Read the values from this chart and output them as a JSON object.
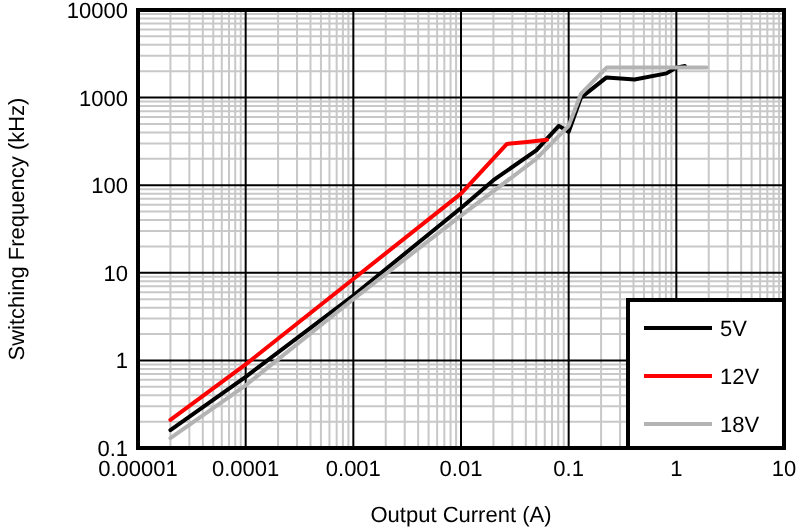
{
  "chart_data": {
    "type": "line",
    "xlabel": "Output Current (A)",
    "ylabel": "Switching Frequency (kHz)",
    "log": "xy",
    "grid": true,
    "legend": "bottom right",
    "line_style": "solid",
    "marker": "none",
    "xlim": [
      1e-05,
      10
    ],
    "xticks": [
      {
        "value": 1e-05,
        "label": "0.00001"
      },
      {
        "value": 0.0001,
        "label": "0.0001"
      },
      {
        "value": 0.001,
        "label": "0.001"
      },
      {
        "value": 0.01,
        "label": "0.01"
      },
      {
        "value": 0.1,
        "label": "0.1"
      },
      1,
      10
    ],
    "ylim": [
      0.1,
      10000
    ],
    "yticks": [
      0.1,
      1,
      10,
      100,
      1000,
      10000
    ],
    "series": [
      {
        "name": "5V",
        "color": "#000000",
        "x": [
          2e-05,
          0.0001,
          0.001,
          0.01,
          0.02,
          0.05,
          0.081,
          0.1,
          0.13,
          0.225,
          0.41,
          0.81,
          1,
          1.2
        ],
        "values": [
          0.16,
          0.65,
          5.5,
          55,
          114,
          250,
          476,
          407,
          1000,
          1700,
          1610,
          1890,
          2200,
          2300
        ]
      },
      {
        "name": "12V",
        "color": "#ff0000",
        "x": [
          2e-05,
          0.0001,
          0.001,
          0.01,
          0.0267,
          0.041,
          0.063
        ],
        "values": [
          0.21,
          0.9,
          8.5,
          80,
          296,
          311,
          330
        ]
      },
      {
        "name": "18V",
        "color": "#b3b3b3",
        "x": [
          2e-05,
          0.0001,
          0.001,
          0.01,
          0.05,
          0.1,
          0.13,
          0.225,
          0.41,
          1,
          1.9
        ],
        "values": [
          0.13,
          0.52,
          5,
          45,
          200,
          476,
          1100,
          2200,
          2200,
          2200,
          2200
        ]
      }
    ]
  }
}
